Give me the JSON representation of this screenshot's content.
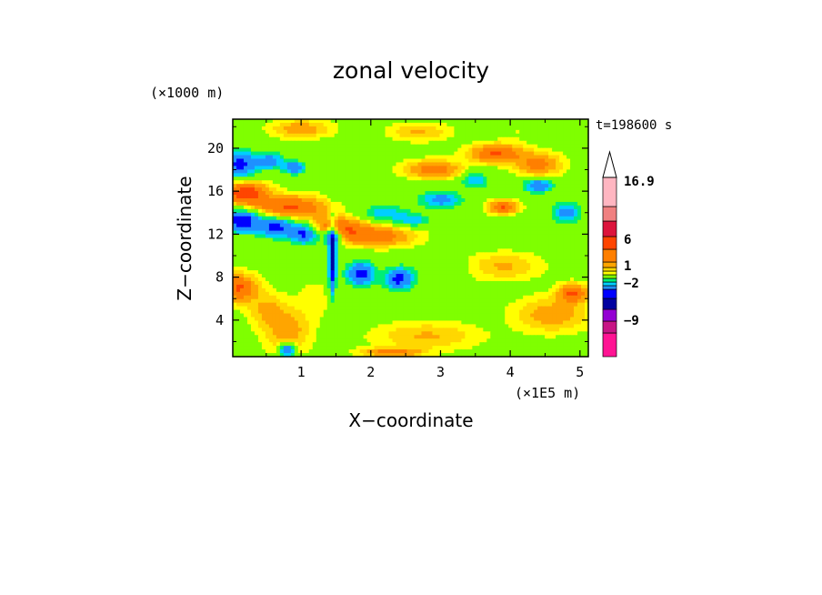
{
  "chart_data": {
    "type": "heatmap",
    "title": "zonal velocity",
    "xlabel": "X−coordinate",
    "ylabel": "Z−coordinate",
    "x_unit": "(×1E5 m)",
    "y_unit": "(×1000 m)",
    "time_label": "t=198600 s",
    "xlim": [
      0.02,
      5.12
    ],
    "ylim": [
      0.6,
      22.7
    ],
    "x_ticks": [
      "1",
      "2",
      "3",
      "4",
      "5"
    ],
    "y_ticks": [
      "4",
      "8",
      "12",
      "16",
      "20"
    ],
    "colorbar": {
      "tick_labels": [
        "16.9",
        "6",
        "1",
        "−2",
        "−9"
      ],
      "colors": [
        "#ff1493",
        "#c71585",
        "#9400d3",
        "#7a1fa2",
        "#0000a0",
        "#0000ff",
        "#1e90ff",
        "#00cfff",
        "#00ee76",
        "#7fff00",
        "#ffff00",
        "#ffd700",
        "#ffa500",
        "#ff7f00",
        "#ff4500",
        "#dc143c",
        "#f08080",
        "#ffb6c1"
      ]
    },
    "field_blobs": [
      {
        "x": 0.12,
        "z": 18.5,
        "rx": 0.22,
        "rz": 1.2,
        "v": -6
      },
      {
        "x": 0.55,
        "z": 18.8,
        "rx": 0.2,
        "rz": 0.8,
        "v": -4
      },
      {
        "x": 0.9,
        "z": 18.2,
        "rx": 0.15,
        "rz": 0.6,
        "v": -5
      },
      {
        "x": 0.2,
        "z": 15.8,
        "rx": 0.3,
        "rz": 1.0,
        "v": 5
      },
      {
        "x": 0.85,
        "z": 14.5,
        "rx": 0.5,
        "rz": 1.0,
        "v": 4
      },
      {
        "x": 1.5,
        "z": 12.5,
        "rx": 0.4,
        "rz": 1.0,
        "v": 4
      },
      {
        "x": 2.1,
        "z": 11.8,
        "rx": 0.5,
        "rz": 0.9,
        "v": 3
      },
      {
        "x": 0.15,
        "z": 13.2,
        "rx": 0.25,
        "rz": 1.0,
        "v": -7
      },
      {
        "x": 0.65,
        "z": 12.6,
        "rx": 0.25,
        "rz": 0.9,
        "v": -6
      },
      {
        "x": 1.05,
        "z": 12.0,
        "rx": 0.2,
        "rz": 0.9,
        "v": -6
      },
      {
        "x": 1.45,
        "z": 11.8,
        "rx": 0.15,
        "rz": 0.8,
        "v": -5
      },
      {
        "x": 1.85,
        "z": 8.3,
        "rx": 0.2,
        "rz": 1.1,
        "v": -6
      },
      {
        "x": 2.4,
        "z": 7.8,
        "rx": 0.2,
        "rz": 1.0,
        "v": -6
      },
      {
        "x": 2.2,
        "z": 14.0,
        "rx": 0.3,
        "rz": 0.7,
        "v": -3
      },
      {
        "x": 2.6,
        "z": 13.3,
        "rx": 0.25,
        "rz": 0.6,
        "v": -3
      },
      {
        "x": 3.0,
        "z": 15.2,
        "rx": 0.3,
        "rz": 0.8,
        "v": -4
      },
      {
        "x": 3.5,
        "z": 17.0,
        "rx": 0.2,
        "rz": 0.8,
        "v": -3
      },
      {
        "x": 4.4,
        "z": 16.5,
        "rx": 0.2,
        "rz": 0.6,
        "v": -5
      },
      {
        "x": 4.8,
        "z": 14.0,
        "rx": 0.2,
        "rz": 1.0,
        "v": -4
      },
      {
        "x": 4.2,
        "z": 13.0,
        "rx": 0.3,
        "rz": 0.8,
        "v": -1
      },
      {
        "x": 3.6,
        "z": 12.0,
        "rx": 0.3,
        "rz": 0.8,
        "v": -1
      },
      {
        "x": 4.7,
        "z": 11.5,
        "rx": 0.25,
        "rz": 0.8,
        "v": -1
      },
      {
        "x": 2.9,
        "z": 9.0,
        "rx": 0.4,
        "rz": 1.0,
        "v": -1
      },
      {
        "x": 2.9,
        "z": 18.0,
        "rx": 0.4,
        "rz": 0.8,
        "v": 3
      },
      {
        "x": 3.8,
        "z": 19.5,
        "rx": 0.35,
        "rz": 0.8,
        "v": 4
      },
      {
        "x": 4.4,
        "z": 18.5,
        "rx": 0.3,
        "rz": 1.0,
        "v": 3
      },
      {
        "x": 3.9,
        "z": 14.5,
        "rx": 0.2,
        "rz": 0.6,
        "v": 4
      },
      {
        "x": 2.0,
        "z": 16.0,
        "rx": 0.5,
        "rz": 1.5,
        "v": -0.5
      },
      {
        "x": 0.1,
        "z": 7.0,
        "rx": 0.25,
        "rz": 1.2,
        "v": 4
      },
      {
        "x": 4.9,
        "z": 6.5,
        "rx": 0.2,
        "rz": 0.8,
        "v": 4
      },
      {
        "x": 3.9,
        "z": 9.0,
        "rx": 0.5,
        "rz": 1.2,
        "v": 1.5
      },
      {
        "x": 4.6,
        "z": 4.5,
        "rx": 0.5,
        "rz": 1.5,
        "v": 2
      },
      {
        "x": 2.8,
        "z": 2.5,
        "rx": 0.7,
        "rz": 1.2,
        "v": 1.5
      },
      {
        "x": 3.8,
        "z": 4.0,
        "rx": 0.4,
        "rz": 1.5,
        "v": 0
      },
      {
        "x": 1.8,
        "z": 4.0,
        "rx": 0.3,
        "rz": 1.5,
        "v": 0
      },
      {
        "x": 0.8,
        "z": 3.0,
        "rx": 0.3,
        "rz": 2.0,
        "v": 2
      },
      {
        "x": 1.2,
        "z": 6.0,
        "rx": 0.25,
        "rz": 2.0,
        "v": 0.5
      },
      {
        "x": 0.5,
        "z": 5.0,
        "rx": 0.25,
        "rz": 1.5,
        "v": 1.5
      },
      {
        "x": 1.45,
        "z": 9.5,
        "rx": 0.05,
        "rz": 3.0,
        "v": -8
      },
      {
        "x": 0.8,
        "z": 1.2,
        "rx": 0.1,
        "rz": 0.6,
        "v": -6
      },
      {
        "x": 2.3,
        "z": 1.0,
        "rx": 0.4,
        "rz": 0.4,
        "v": 3
      },
      {
        "x": 4.1,
        "z": 21.5,
        "rx": 0.3,
        "rz": 1.0,
        "v": 0.3
      },
      {
        "x": 1.0,
        "z": 21.8,
        "rx": 0.4,
        "rz": 0.8,
        "v": 2
      },
      {
        "x": 2.7,
        "z": 21.5,
        "rx": 0.4,
        "rz": 0.8,
        "v": 1.5
      }
    ]
  }
}
